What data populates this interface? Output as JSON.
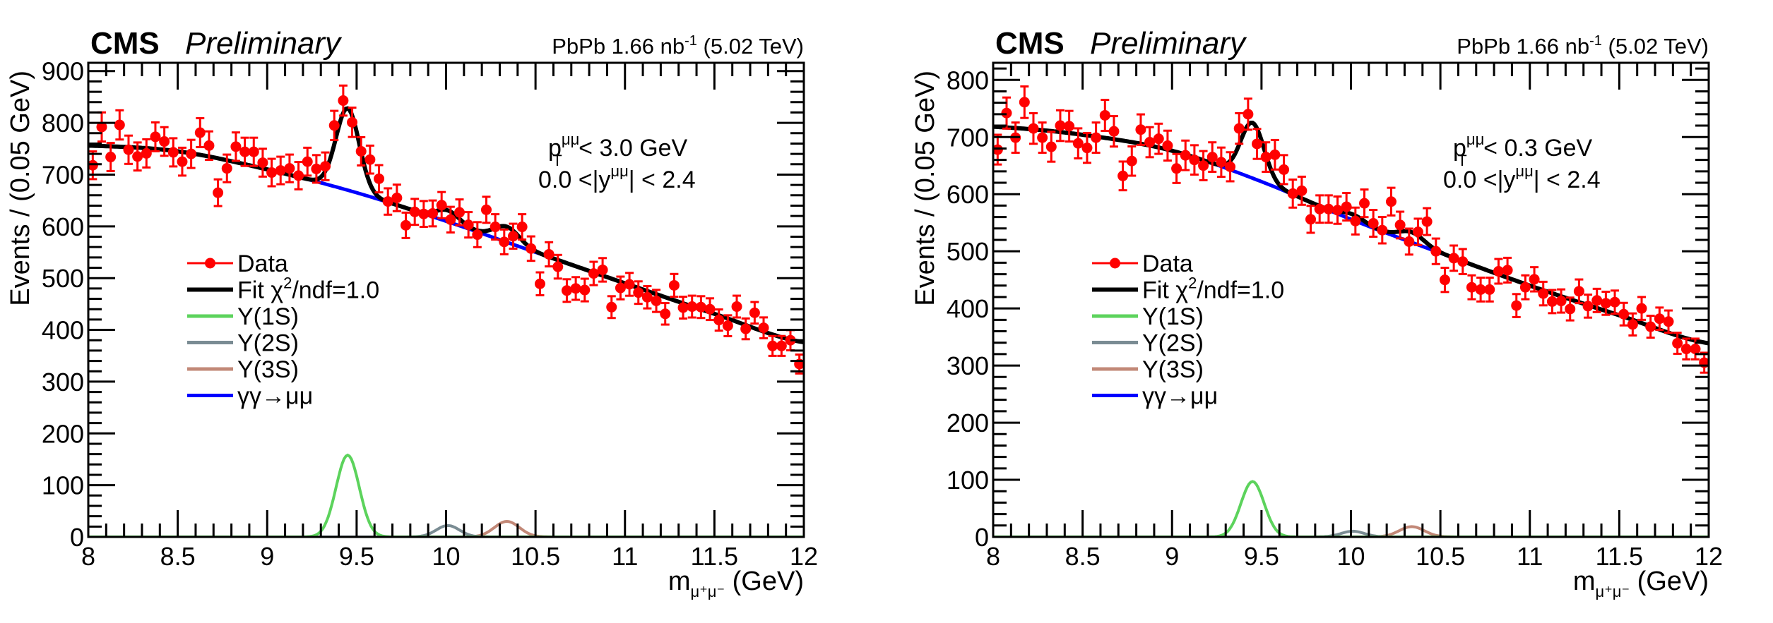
{
  "colors": {
    "data": "#ff0000",
    "fit": "#000000",
    "upsilon_1s": "#5cd35c",
    "upsilon_2s": "#7a8c93",
    "upsilon_3s": "#c28877",
    "gamma_gamma": "#0000ff",
    "axis": "#000000"
  },
  "chart_data": [
    {
      "type": "scatter",
      "title": "CMS Preliminary",
      "header": {
        "experiment": "CMS",
        "status": "Preliminary",
        "lumi_prefix": "PbPb 1.66 nb",
        "lumi_sup": "-1",
        "lumi_suffix": " (5.02 TeV)"
      },
      "xlabel": "m",
      "xlabel_sub": "μ⁺μ⁻",
      "xlabel_unit": " (GeV)",
      "ylabel": "Events / (0.05 GeV)",
      "xlim": [
        8,
        12
      ],
      "ylim": [
        0,
        916
      ],
      "x_ticks": [
        "8",
        "8.5",
        "9",
        "9.5",
        "10",
        "10.5",
        "11",
        "11.5",
        "12"
      ],
      "x_tick_values": [
        8,
        8.5,
        9,
        9.5,
        10,
        10.5,
        11,
        11.5,
        12
      ],
      "y_ticks": [
        "0",
        "100",
        "200",
        "300",
        "400",
        "500",
        "600",
        "700",
        "800",
        "900"
      ],
      "y_tick_values": [
        0,
        100,
        200,
        300,
        400,
        500,
        600,
        700,
        800,
        900
      ],
      "annotations": {
        "line1": {
          "p": "p",
          "sub": "T",
          "sup": "μμ",
          "rest": " < 3.0 GeV"
        },
        "line2": {
          "pre": "0.0 <|y",
          "sup": "μμ",
          "rest": "| < 2.4"
        }
      },
      "legend": {
        "placement": "center-left",
        "entries": [
          {
            "key": "data",
            "label": "Data"
          },
          {
            "key": "fit",
            "label": "Fit   χ",
            "sup": "2",
            "rest": "/ndf=1.0"
          },
          {
            "key": "upsilon_1s",
            "label": "Υ(1S)"
          },
          {
            "key": "upsilon_2s",
            "label": "Υ(2S)"
          },
          {
            "key": "upsilon_3s",
            "label": "Υ(3S)"
          },
          {
            "key": "gamma_gamma",
            "label": "γγ→μμ"
          }
        ]
      },
      "bin_width": 0.05,
      "yerr": "poisson",
      "x": [
        8.025,
        8.075,
        8.125,
        8.175,
        8.225,
        8.275,
        8.325,
        8.375,
        8.425,
        8.475,
        8.525,
        8.575,
        8.625,
        8.675,
        8.725,
        8.775,
        8.825,
        8.875,
        8.925,
        8.975,
        9.025,
        9.075,
        9.125,
        9.175,
        9.225,
        9.275,
        9.325,
        9.375,
        9.425,
        9.475,
        9.525,
        9.575,
        9.625,
        9.675,
        9.725,
        9.775,
        9.825,
        9.875,
        9.925,
        9.975,
        10.025,
        10.075,
        10.125,
        10.175,
        10.225,
        10.275,
        10.325,
        10.375,
        10.425,
        10.475,
        10.525,
        10.575,
        10.625,
        10.675,
        10.725,
        10.775,
        10.825,
        10.875,
        10.925,
        10.975,
        11.025,
        11.075,
        11.125,
        11.175,
        11.225,
        11.275,
        11.325,
        11.375,
        11.425,
        11.475,
        11.525,
        11.575,
        11.625,
        11.675,
        11.725,
        11.775,
        11.825,
        11.875,
        11.925,
        11.975
      ],
      "data": [
        718,
        792,
        734,
        796,
        748,
        735,
        741,
        773,
        764,
        743,
        725,
        740,
        781,
        756,
        665,
        712,
        754,
        744,
        744,
        723,
        704,
        708,
        712,
        698,
        725,
        711,
        716,
        795,
        843,
        801,
        745,
        729,
        692,
        648,
        655,
        602,
        628,
        624,
        625,
        641,
        613,
        627,
        603,
        584,
        632,
        599,
        570,
        581,
        599,
        557,
        489,
        546,
        522,
        476,
        480,
        477,
        509,
        516,
        444,
        481,
        488,
        472,
        463,
        456,
        431,
        486,
        443,
        445,
        444,
        440,
        419,
        408,
        445,
        402,
        433,
        404,
        369,
        369,
        380,
        334
      ],
      "background": {
        "name": "γγ→μμ",
        "x": [
          8,
          8.5,
          9,
          9.5,
          10,
          10.5,
          11,
          11.5,
          12
        ],
        "y": [
          756,
          745,
          710,
          665,
          610,
          550,
          490,
          431,
          376
        ]
      },
      "signals": [
        {
          "name": "Υ(1S)",
          "mean": 9.45,
          "sigma": 0.065,
          "peak": 158
        },
        {
          "name": "Υ(2S)",
          "mean": 10.01,
          "sigma": 0.065,
          "peak": 22
        },
        {
          "name": "Υ(3S)",
          "mean": 10.34,
          "sigma": 0.07,
          "peak": 30
        }
      ],
      "fit": {
        "name": "Fit",
        "chi2_ndf": 1.0,
        "model": "background + signals"
      }
    },
    {
      "type": "scatter",
      "title": "CMS Preliminary",
      "header": {
        "experiment": "CMS",
        "status": "Preliminary",
        "lumi_prefix": "PbPb 1.66 nb",
        "lumi_sup": "-1",
        "lumi_suffix": " (5.02 TeV)"
      },
      "xlabel": "m",
      "xlabel_sub": "μ⁺μ⁻",
      "xlabel_unit": " (GeV)",
      "ylabel": "Events / (0.05 GeV)",
      "xlim": [
        8,
        12
      ],
      "ylim": [
        0,
        830
      ],
      "x_ticks": [
        "8",
        "8.5",
        "9",
        "9.5",
        "10",
        "10.5",
        "11",
        "11.5",
        "12"
      ],
      "x_tick_values": [
        8,
        8.5,
        9,
        9.5,
        10,
        10.5,
        11,
        11.5,
        12
      ],
      "y_ticks": [
        "0",
        "100",
        "200",
        "300",
        "400",
        "500",
        "600",
        "700",
        "800"
      ],
      "y_tick_values": [
        0,
        100,
        200,
        300,
        400,
        500,
        600,
        700,
        800
      ],
      "annotations": {
        "line1": {
          "p": "p",
          "sub": "T",
          "sup": "μμ",
          "rest": " < 0.3 GeV"
        },
        "line2": {
          "pre": "0.0 <|y",
          "sup": "μμ",
          "rest": "| < 2.4"
        }
      },
      "legend": {
        "placement": "center-left",
        "entries": [
          {
            "key": "data",
            "label": "Data"
          },
          {
            "key": "fit",
            "label": "Fit   χ",
            "sup": "2",
            "rest": "/ndf=1.0"
          },
          {
            "key": "upsilon_1s",
            "label": "Υ(1S)"
          },
          {
            "key": "upsilon_2s",
            "label": "Υ(2S)"
          },
          {
            "key": "upsilon_3s",
            "label": "Υ(3S)"
          },
          {
            "key": "gamma_gamma",
            "label": "γγ→μμ"
          }
        ]
      },
      "bin_width": 0.05,
      "yerr": "poisson",
      "x": [
        8.025,
        8.075,
        8.125,
        8.175,
        8.225,
        8.275,
        8.325,
        8.375,
        8.425,
        8.475,
        8.525,
        8.575,
        8.625,
        8.675,
        8.725,
        8.775,
        8.825,
        8.875,
        8.925,
        8.975,
        9.025,
        9.075,
        9.125,
        9.175,
        9.225,
        9.275,
        9.325,
        9.375,
        9.425,
        9.475,
        9.525,
        9.575,
        9.625,
        9.675,
        9.725,
        9.775,
        9.825,
        9.875,
        9.925,
        9.975,
        10.025,
        10.075,
        10.125,
        10.175,
        10.225,
        10.275,
        10.325,
        10.375,
        10.425,
        10.475,
        10.525,
        10.575,
        10.625,
        10.675,
        10.725,
        10.775,
        10.825,
        10.875,
        10.925,
        10.975,
        11.025,
        11.075,
        11.125,
        11.175,
        11.225,
        11.275,
        11.325,
        11.375,
        11.425,
        11.475,
        11.525,
        11.575,
        11.625,
        11.675,
        11.725,
        11.775,
        11.825,
        11.875,
        11.925,
        11.975
      ],
      "data": [
        678,
        742,
        699,
        761,
        715,
        699,
        683,
        720,
        719,
        689,
        681,
        699,
        738,
        710,
        632,
        658,
        713,
        691,
        697,
        685,
        645,
        668,
        660,
        650,
        665,
        656,
        648,
        715,
        740,
        688,
        665,
        669,
        643,
        601,
        606,
        556,
        574,
        574,
        572,
        578,
        553,
        584,
        549,
        537,
        587,
        546,
        517,
        534,
        552,
        500,
        450,
        488,
        482,
        437,
        433,
        433,
        465,
        467,
        405,
        437,
        451,
        426,
        412,
        413,
        399,
        430,
        404,
        414,
        409,
        411,
        390,
        372,
        400,
        368,
        382,
        377,
        339,
        329,
        329,
        305
      ],
      "background": {
        "name": "γγ→μμ",
        "x": [
          8,
          8.5,
          9,
          9.5,
          10,
          10.5,
          11,
          11.5,
          12
        ],
        "y": [
          718,
          704,
          676,
          622,
          556,
          497,
          440,
          388,
          339
        ]
      },
      "signals": [
        {
          "name": "Υ(1S)",
          "mean": 9.45,
          "sigma": 0.065,
          "peak": 97
        },
        {
          "name": "Υ(2S)",
          "mean": 10.01,
          "sigma": 0.065,
          "peak": 10
        },
        {
          "name": "Υ(3S)",
          "mean": 10.34,
          "sigma": 0.07,
          "peak": 18
        }
      ],
      "fit": {
        "name": "Fit",
        "chi2_ndf": 1.0,
        "model": "background + signals"
      }
    }
  ]
}
